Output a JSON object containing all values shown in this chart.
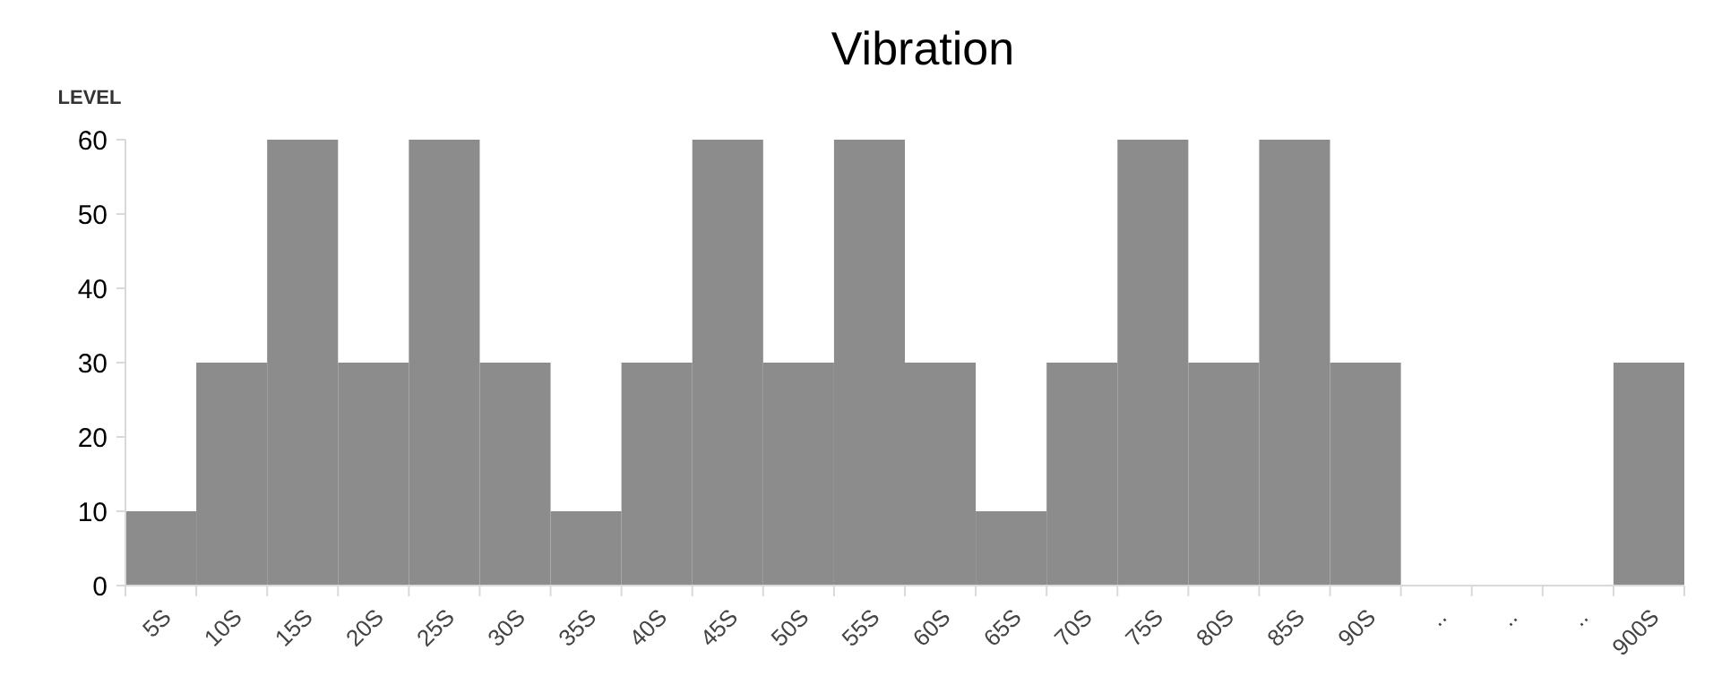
{
  "chart_data": {
    "type": "bar",
    "title": "Vibration",
    "ylabel": "LEVEL",
    "categories": [
      "5S",
      "10S",
      "15S",
      "20S",
      "25S",
      "30S",
      "35S",
      "40S",
      "45S",
      "50S",
      "55S",
      "60S",
      "65S",
      "70S",
      "75S",
      "80S",
      "85S",
      "90S",
      "..",
      "..",
      "..",
      "900S"
    ],
    "values": [
      10,
      30,
      60,
      30,
      60,
      30,
      10,
      30,
      60,
      30,
      60,
      30,
      10,
      30,
      60,
      30,
      60,
      30,
      0,
      0,
      0,
      30
    ],
    "color": "#8c8c8c",
    "ylim": [
      0,
      60
    ],
    "yticks": [
      0,
      10,
      20,
      30,
      40,
      50,
      60
    ],
    "grid": false
  }
}
